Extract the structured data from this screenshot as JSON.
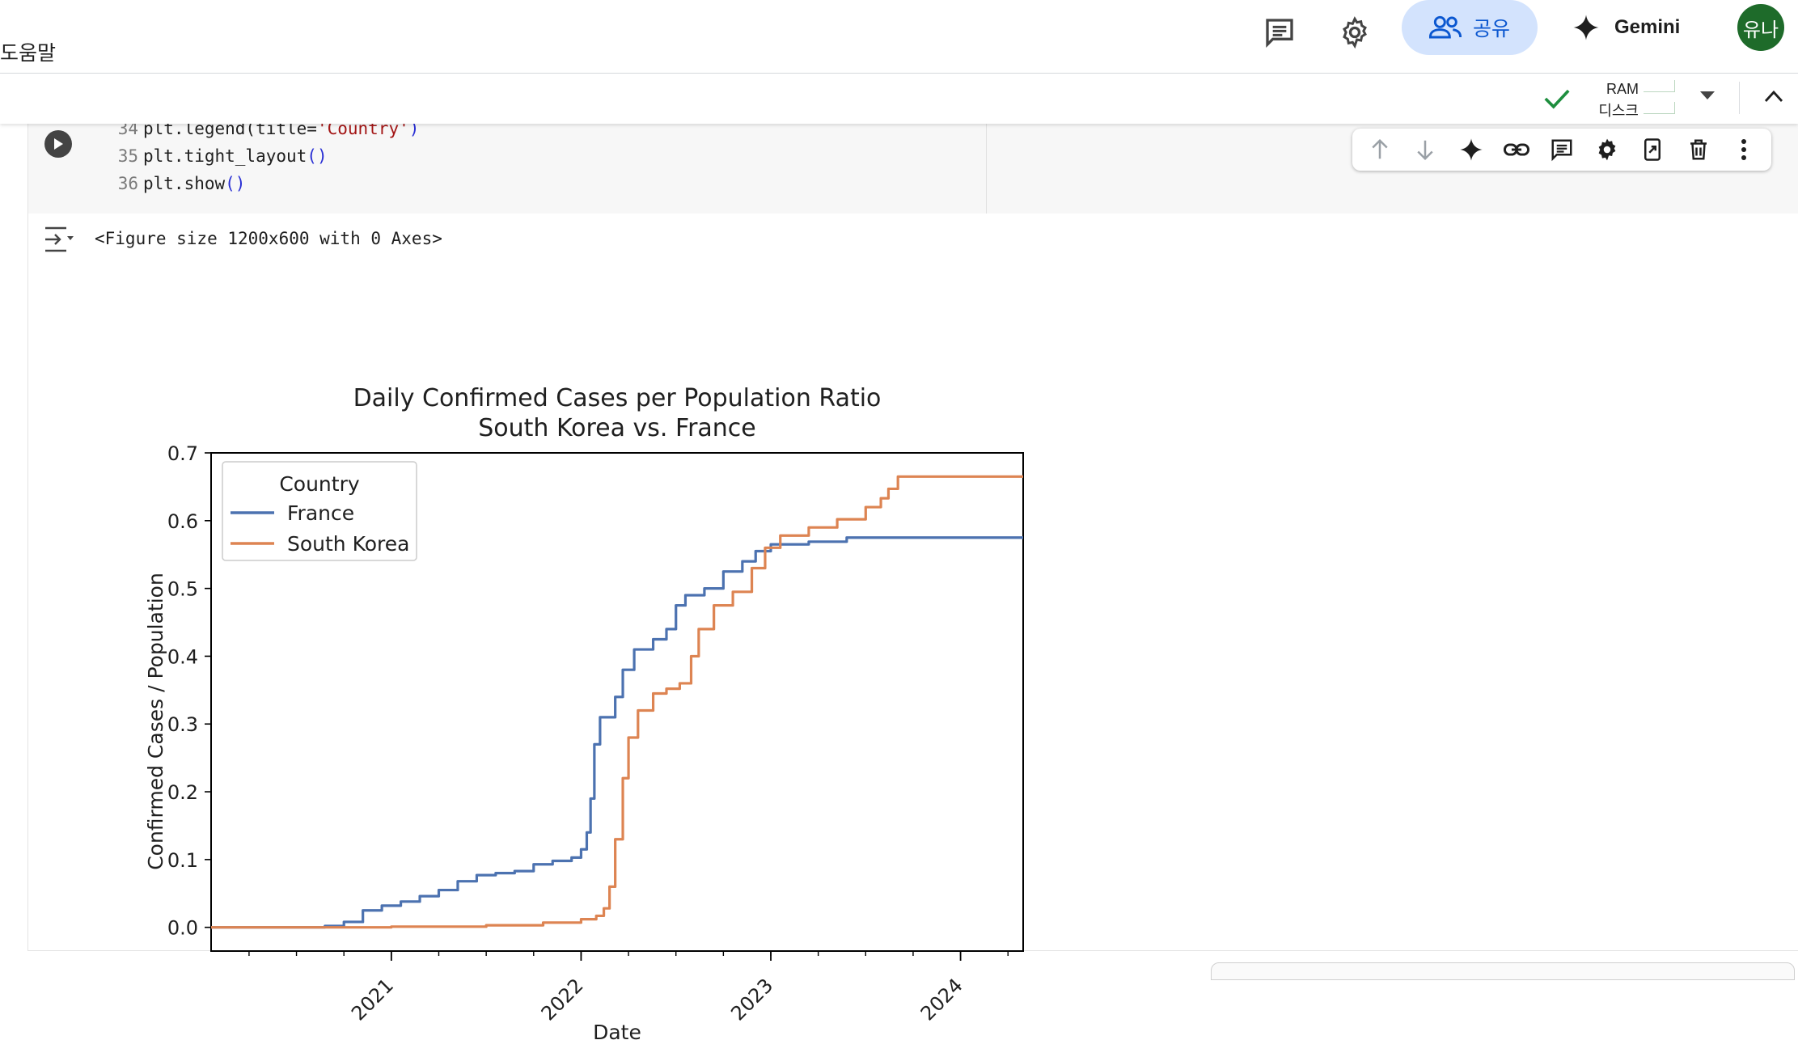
{
  "header": {
    "help_menu": "도움말",
    "share_label": "공유",
    "gemini_label": "Gemini",
    "avatar_text": "유나"
  },
  "resources": {
    "ram_label": "RAM",
    "disk_label": "디스크"
  },
  "code": {
    "lines": [
      {
        "num": "34",
        "pre": "plt.legend(title=",
        "str": "'Country'",
        "post": ")"
      },
      {
        "num": "35",
        "pre": "plt.tight_layout",
        "str": "",
        "post": "()"
      },
      {
        "num": "36",
        "pre": "plt.show",
        "str": "",
        "post": "()"
      }
    ]
  },
  "output": {
    "text": "<Figure size 1200x600 with 0 Axes>"
  },
  "chart_data": {
    "type": "line",
    "title": "Daily Confirmed Cases per Population Ratio\nSouth Korea vs. France",
    "xlabel": "Date",
    "ylabel": "Confirmed Cases / Population",
    "xlim": [
      2020.05,
      2024.33
    ],
    "ylim": [
      -0.035,
      0.7
    ],
    "yticks": [
      "0.0",
      "0.1",
      "0.2",
      "0.3",
      "0.4",
      "0.5",
      "0.6",
      "0.7"
    ],
    "xticks": [
      "2021",
      "2022",
      "2023",
      "2024"
    ],
    "legend": {
      "title": "Country",
      "position": "upper-left"
    },
    "series": [
      {
        "name": "France",
        "color": "#4c72b0",
        "points": [
          [
            2020.05,
            0.0
          ],
          [
            2020.5,
            0.0
          ],
          [
            2020.65,
            0.002
          ],
          [
            2020.75,
            0.008
          ],
          [
            2020.85,
            0.025
          ],
          [
            2020.95,
            0.032
          ],
          [
            2021.05,
            0.038
          ],
          [
            2021.15,
            0.046
          ],
          [
            2021.25,
            0.055
          ],
          [
            2021.35,
            0.068
          ],
          [
            2021.45,
            0.077
          ],
          [
            2021.55,
            0.08
          ],
          [
            2021.65,
            0.083
          ],
          [
            2021.75,
            0.093
          ],
          [
            2021.85,
            0.098
          ],
          [
            2021.95,
            0.103
          ],
          [
            2022.0,
            0.115
          ],
          [
            2022.03,
            0.14
          ],
          [
            2022.05,
            0.19
          ],
          [
            2022.07,
            0.27
          ],
          [
            2022.1,
            0.31
          ],
          [
            2022.18,
            0.34
          ],
          [
            2022.22,
            0.38
          ],
          [
            2022.28,
            0.41
          ],
          [
            2022.38,
            0.425
          ],
          [
            2022.45,
            0.44
          ],
          [
            2022.5,
            0.475
          ],
          [
            2022.55,
            0.49
          ],
          [
            2022.65,
            0.5
          ],
          [
            2022.75,
            0.525
          ],
          [
            2022.85,
            0.54
          ],
          [
            2022.92,
            0.555
          ],
          [
            2023.0,
            0.565
          ],
          [
            2023.2,
            0.569
          ],
          [
            2023.4,
            0.575
          ],
          [
            2024.33,
            0.575
          ]
        ]
      },
      {
        "name": "South Korea",
        "color": "#dd8452",
        "points": [
          [
            2020.05,
            0.0
          ],
          [
            2021.0,
            0.001
          ],
          [
            2021.5,
            0.003
          ],
          [
            2021.8,
            0.007
          ],
          [
            2022.0,
            0.012
          ],
          [
            2022.08,
            0.017
          ],
          [
            2022.12,
            0.028
          ],
          [
            2022.15,
            0.06
          ],
          [
            2022.18,
            0.13
          ],
          [
            2022.22,
            0.22
          ],
          [
            2022.25,
            0.28
          ],
          [
            2022.3,
            0.32
          ],
          [
            2022.38,
            0.345
          ],
          [
            2022.45,
            0.352
          ],
          [
            2022.52,
            0.36
          ],
          [
            2022.58,
            0.4
          ],
          [
            2022.62,
            0.44
          ],
          [
            2022.7,
            0.475
          ],
          [
            2022.8,
            0.495
          ],
          [
            2022.9,
            0.53
          ],
          [
            2022.97,
            0.56
          ],
          [
            2023.05,
            0.578
          ],
          [
            2023.2,
            0.59
          ],
          [
            2023.35,
            0.602
          ],
          [
            2023.5,
            0.62
          ],
          [
            2023.58,
            0.633
          ],
          [
            2023.62,
            0.647
          ],
          [
            2023.67,
            0.665
          ],
          [
            2024.33,
            0.665
          ]
        ]
      }
    ]
  }
}
